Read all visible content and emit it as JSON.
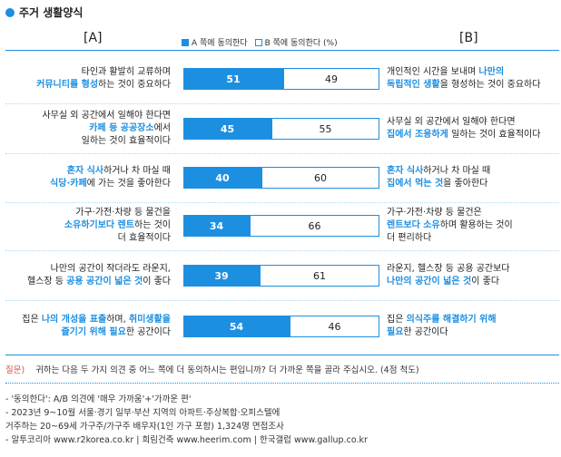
{
  "title": "주거 생활양식",
  "label_a": "[A]",
  "label_b": "[B]",
  "legend": {
    "a": "A 쪽에 동의한다",
    "b": "B 쪽에 동의한다 (%)"
  },
  "colors": {
    "accent": "#1d8fe1",
    "highlight": "#1d8fe1"
  },
  "chart_data": {
    "type": "bar",
    "stacked": true,
    "orientation": "horizontal",
    "xlim": [
      0,
      100
    ],
    "series_names": [
      "A 쪽에 동의한다",
      "B 쪽에 동의한다"
    ],
    "rows": [
      {
        "a_parts": [
          {
            "t": "타인과 활발히 교류하며",
            "h": false
          },
          {
            "t": "\n",
            "h": false
          },
          {
            "t": "커뮤니티를 형성",
            "h": true
          },
          {
            "t": "하는 것이 중요하다",
            "h": false
          }
        ],
        "b_parts": [
          {
            "t": "개인적인 시간을 보내며 ",
            "h": false
          },
          {
            "t": "나만의",
            "h": true
          },
          {
            "t": "\n",
            "h": false
          },
          {
            "t": "독립적인 생활",
            "h": true
          },
          {
            "t": "을 형성하는 것이 중요하다",
            "h": false
          }
        ],
        "a": 51,
        "b": 49
      },
      {
        "a_parts": [
          {
            "t": "사무실 외 공간에서 일해야 한다면",
            "h": false
          },
          {
            "t": "\n",
            "h": false
          },
          {
            "t": "카페 등 공공장소",
            "h": true
          },
          {
            "t": "에서",
            "h": false
          },
          {
            "t": "\n",
            "h": false
          },
          {
            "t": "일하는 것이 효율적이다",
            "h": false
          }
        ],
        "b_parts": [
          {
            "t": "사무실 외 공간에서 일해야 한다면",
            "h": false
          },
          {
            "t": "\n",
            "h": false
          },
          {
            "t": "집에서 조용하게",
            "h": true
          },
          {
            "t": " 일하는 것이 효율적이다",
            "h": false
          }
        ],
        "a": 45,
        "b": 55
      },
      {
        "a_parts": [
          {
            "t": "혼자 식사",
            "h": true
          },
          {
            "t": "하거나 차 마실 때",
            "h": false
          },
          {
            "t": "\n",
            "h": false
          },
          {
            "t": "식당·카페",
            "h": true
          },
          {
            "t": "에 가는 것을 좋아한다",
            "h": false
          }
        ],
        "b_parts": [
          {
            "t": "혼자 식사",
            "h": true
          },
          {
            "t": "하거나 차 마실 때",
            "h": false
          },
          {
            "t": "\n",
            "h": false
          },
          {
            "t": "집에서 먹는 것",
            "h": true
          },
          {
            "t": "을 좋아한다",
            "h": false
          }
        ],
        "a": 40,
        "b": 60
      },
      {
        "a_parts": [
          {
            "t": "가구·가전·차량 등 물건을",
            "h": false
          },
          {
            "t": "\n",
            "h": false
          },
          {
            "t": "소유하기보다 렌트",
            "h": true
          },
          {
            "t": "하는 것이",
            "h": false
          },
          {
            "t": "\n",
            "h": false
          },
          {
            "t": "더 효율적이다",
            "h": false
          }
        ],
        "b_parts": [
          {
            "t": "가구·가전·차량 등 물건은",
            "h": false
          },
          {
            "t": "\n",
            "h": false
          },
          {
            "t": "렌트보다 소유",
            "h": true
          },
          {
            "t": "하며 활용하는 것이",
            "h": false
          },
          {
            "t": "\n",
            "h": false
          },
          {
            "t": "더 편리하다",
            "h": false
          }
        ],
        "a": 34,
        "b": 66
      },
      {
        "a_parts": [
          {
            "t": "나만의 공간이 작더라도 라운지,",
            "h": false
          },
          {
            "t": "\n",
            "h": false
          },
          {
            "t": "헬스장 등 ",
            "h": false
          },
          {
            "t": "공용 공간이 넓은 것",
            "h": true
          },
          {
            "t": "이 좋다",
            "h": false
          }
        ],
        "b_parts": [
          {
            "t": "라운지, 헬스장 등 공용 공간보다",
            "h": false
          },
          {
            "t": "\n",
            "h": false
          },
          {
            "t": "나만의 공간이 넓은 것",
            "h": true
          },
          {
            "t": "이 좋다",
            "h": false
          }
        ],
        "a": 39,
        "b": 61
      },
      {
        "a_parts": [
          {
            "t": "집은 ",
            "h": false
          },
          {
            "t": "나의 개성을 표출",
            "h": true
          },
          {
            "t": "하며, ",
            "h": false
          },
          {
            "t": "취미생활을",
            "h": true
          },
          {
            "t": "\n",
            "h": false
          },
          {
            "t": "즐기기 위해 필요",
            "h": true
          },
          {
            "t": "한 공간이다",
            "h": false
          }
        ],
        "b_parts": [
          {
            "t": "집은 ",
            "h": false
          },
          {
            "t": "의식주를 해결하기 위해",
            "h": true
          },
          {
            "t": "\n",
            "h": false
          },
          {
            "t": "필요",
            "h": true
          },
          {
            "t": "한 공간이다",
            "h": false
          }
        ],
        "a": 54,
        "b": 46
      }
    ]
  },
  "question_label": "질문)",
  "question_text": "귀하는 다음 두 가지 의견 중 어느 쪽에 더 동의하시는 편입니까? 더 가까운 쪽을 골라 주십시오. (4점 척도)",
  "notes": [
    "- '동의한다': A/B 의견에 '매우 가까움'+'가까운 편'",
    "- 2023년 9~10월 서울·경기 일부·부산 지역의 아파트·주상복합·오피스텔에",
    "  거주하는 20~69세 가구주/가구주 배우자(1인 가구 포함) 1,324명 면접조사",
    "- 알투코리아 www.r2korea.co.kr | 희림건축 www.heerim.com | 한국갤럽 www.gallup.co.kr"
  ]
}
